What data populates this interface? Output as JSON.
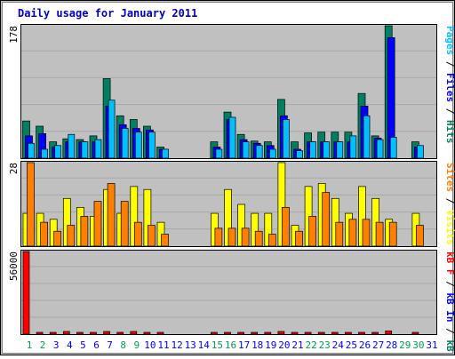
{
  "chart_data": {
    "type": "bar",
    "title": "Daily usage for January 2011",
    "days": [
      "1",
      "2",
      "3",
      "4",
      "5",
      "6",
      "7",
      "8",
      "9",
      "10",
      "11",
      "12",
      "13",
      "14",
      "15",
      "16",
      "17",
      "18",
      "19",
      "20",
      "21",
      "22",
      "23",
      "24",
      "25",
      "26",
      "27",
      "28",
      "29",
      "30",
      "31"
    ],
    "weekend_days": [
      "1",
      "2",
      "8",
      "9",
      "15",
      "16",
      "22",
      "23",
      "29",
      "30"
    ],
    "colors": {
      "hits": "#008060",
      "files": "#0000ff",
      "pages": "#00c0ff",
      "visits": "#ffff00",
      "sites": "#ff8000",
      "kbin": "#0000ff",
      "kbout": "#008060",
      "kbf": "#ff0000",
      "weekday_label": "#0000ff",
      "weekend_label": "#00a050",
      "frame": "#0000c0",
      "panel_bg": "#c0c0c0"
    },
    "panels": [
      {
        "name": "hits-files-pages",
        "ymax_label": "178",
        "ymax": 178,
        "axis_label_parts": [
          {
            "text": "Pages",
            "color": "#00c0ff"
          },
          {
            "text": " / ",
            "color": "#000000"
          },
          {
            "text": "Files",
            "color": "#0000ff"
          },
          {
            "text": " / ",
            "color": "#000000"
          },
          {
            "text": "Hits",
            "color": "#008060"
          }
        ],
        "series": [
          {
            "name": "Hits",
            "color": "#008060",
            "values": [
              50,
              43,
              22,
              26,
              25,
              30,
              107,
              57,
              52,
              43,
              15,
              0,
              0,
              0,
              22,
              62,
              32,
              23,
              22,
              79,
              22,
              34,
              35,
              35,
              35,
              87,
              30,
              178,
              0,
              22,
              0
            ]
          },
          {
            "name": "Files",
            "color": "#0000ff",
            "values": [
              30,
              33,
              15,
              22,
              22,
              22,
              70,
              45,
              40,
              38,
              12,
              0,
              0,
              0,
              15,
              52,
              25,
              20,
              17,
              57,
              12,
              22,
              22,
              22,
              22,
              70,
              27,
              162,
              0,
              15,
              0
            ]
          },
          {
            "name": "Pages",
            "color": "#00c0ff",
            "values": [
              20,
              12,
              17,
              32,
              22,
              25,
              78,
              40,
              35,
              35,
              12,
              0,
              0,
              0,
              12,
              55,
              22,
              17,
              12,
              52,
              10,
              22,
              22,
              22,
              30,
              57,
              25,
              28,
              0,
              17,
              0
            ]
          }
        ]
      },
      {
        "name": "visits-sites",
        "ymax_label": "28",
        "ymax": 28,
        "axis_label_parts": [
          {
            "text": "Sites",
            "color": "#ff8000"
          },
          {
            "text": " / ",
            "color": "#000000"
          },
          {
            "text": "Visits",
            "color": "#ffff00"
          }
        ],
        "series": [
          {
            "name": "Visits",
            "color": "#ffff00",
            "values": [
              11,
              11,
              9,
              16,
              13,
              10,
              19,
              11,
              20,
              19,
              8,
              0,
              0,
              0,
              11,
              19,
              14,
              11,
              11,
              28,
              7,
              20,
              21,
              16,
              11,
              20,
              16,
              9,
              0,
              11,
              0
            ]
          },
          {
            "name": "Sites",
            "color": "#ff8000",
            "values": [
              28,
              8,
              5,
              7,
              10,
              15,
              21,
              15,
              8,
              7,
              4,
              0,
              0,
              0,
              6,
              6,
              6,
              5,
              4,
              13,
              5,
              10,
              18,
              8,
              9,
              9,
              8,
              8,
              0,
              7,
              0
            ]
          }
        ]
      },
      {
        "name": "kbytes",
        "ymax_label": "56000",
        "ymax": 56000,
        "axis_label_parts": [
          {
            "text": "kB F",
            "color": "#ff0000"
          },
          {
            "text": " / ",
            "color": "#000000"
          },
          {
            "text": "kB In",
            "color": "#0000ff"
          },
          {
            "text": " / ",
            "color": "#000000"
          },
          {
            "text": "kB Out",
            "color": "#008060"
          }
        ],
        "series": [
          {
            "name": "kB F",
            "color": "#ff0000",
            "values": [
              56000,
              1200,
              1200,
              1800,
              1200,
              1200,
              1800,
              1200,
              1800,
              1200,
              1200,
              0,
              0,
              0,
              1200,
              1200,
              1200,
              1200,
              1200,
              1800,
              1200,
              1200,
              1200,
              1200,
              1200,
              1200,
              1200,
              2200,
              0,
              1200,
              0
            ]
          }
        ]
      }
    ]
  }
}
